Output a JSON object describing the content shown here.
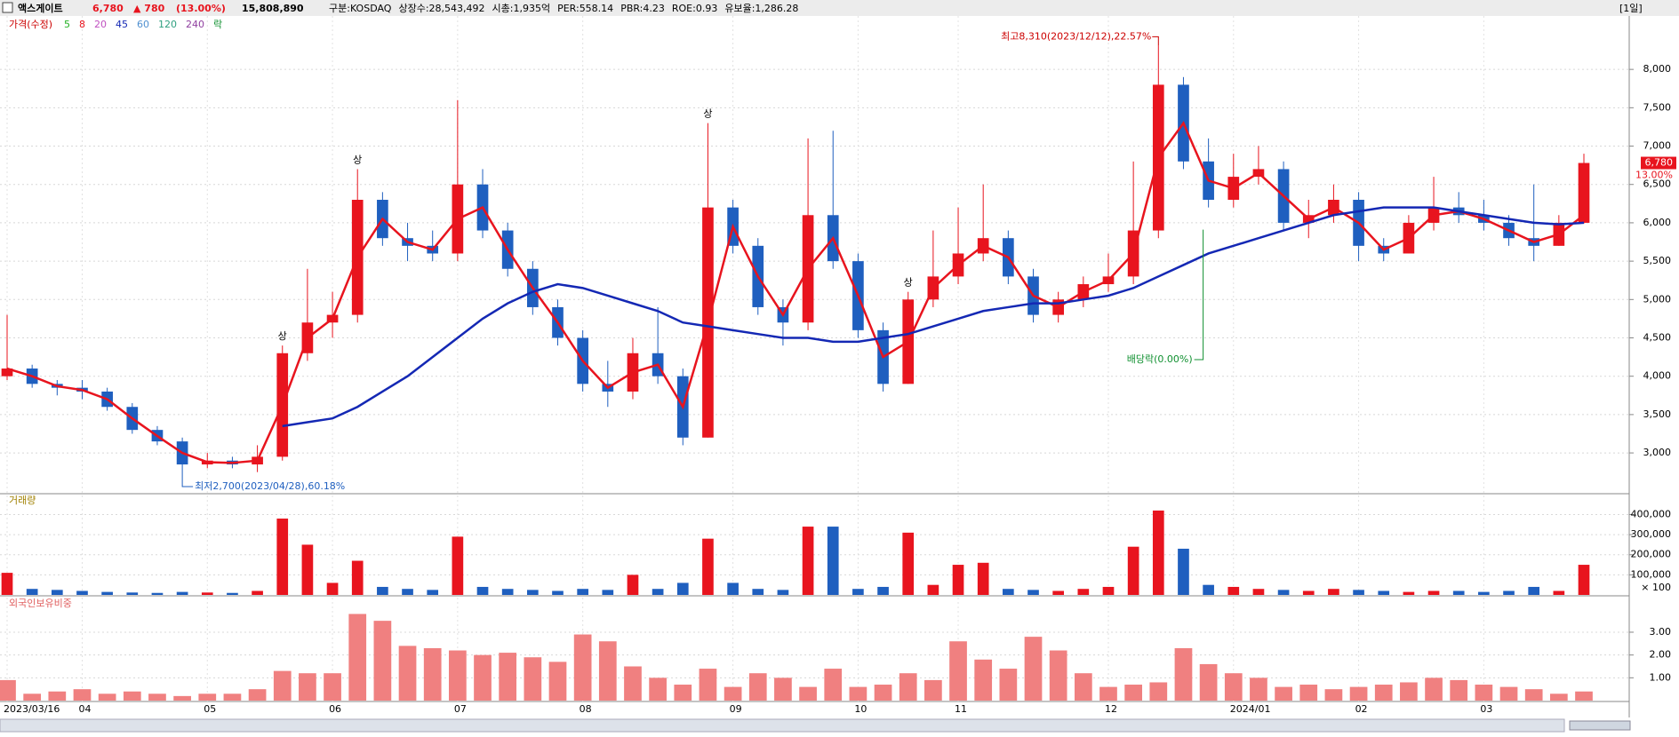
{
  "header": {
    "name": "액스게이트",
    "price": "6,780",
    "change": "▲ 780",
    "change_pct": "(13.00%)",
    "volume": "15,808,890",
    "info": [
      "구분:KOSDAQ",
      "상장수:28,543,492",
      "시총:1,935억",
      "PER:558.14",
      "PBR:4.23",
      "ROE:0.93",
      "유보율:1,286.28"
    ],
    "period": "[1일]"
  },
  "chart_data": {
    "type": "candlestick",
    "title": "가격(수정)",
    "categories": [
      "2023/03/16",
      null,
      null,
      "04",
      null,
      null,
      null,
      null,
      "05",
      null,
      null,
      null,
      null,
      "06",
      null,
      null,
      null,
      null,
      "07",
      null,
      null,
      null,
      null,
      "08",
      null,
      null,
      null,
      null,
      null,
      "09",
      null,
      null,
      null,
      null,
      "10",
      null,
      null,
      null,
      "11",
      null,
      null,
      null,
      null,
      null,
      "12",
      null,
      null,
      null,
      null,
      "2024/01",
      null,
      null,
      null,
      null,
      "02",
      null,
      null,
      null,
      null,
      "03",
      null,
      null,
      null,
      null
    ],
    "candles": [
      [
        4000,
        4800,
        3950,
        4100
      ],
      [
        4100,
        4150,
        3850,
        3900
      ],
      [
        3900,
        3950,
        3750,
        3850
      ],
      [
        3850,
        3950,
        3700,
        3800
      ],
      [
        3800,
        3850,
        3550,
        3600
      ],
      [
        3600,
        3650,
        3250,
        3300
      ],
      [
        3300,
        3350,
        3100,
        3150
      ],
      [
        3150,
        3200,
        2700,
        2850
      ],
      [
        2850,
        3000,
        2800,
        2900
      ],
      [
        2900,
        2950,
        2800,
        2850
      ],
      [
        2850,
        3100,
        2750,
        2950
      ],
      [
        2950,
        4400,
        2900,
        4300
      ],
      [
        4300,
        5400,
        4200,
        4700
      ],
      [
        4700,
        5100,
        4500,
        4800
      ],
      [
        4800,
        6700,
        4700,
        6300
      ],
      [
        6300,
        6400,
        5700,
        5800
      ],
      [
        5800,
        6000,
        5500,
        5700
      ],
      [
        5700,
        5900,
        5500,
        5600
      ],
      [
        5600,
        7600,
        5500,
        6500
      ],
      [
        6500,
        6700,
        5800,
        5900
      ],
      [
        5900,
        6000,
        5300,
        5400
      ],
      [
        5400,
        5500,
        4800,
        4900
      ],
      [
        4900,
        5000,
        4400,
        4500
      ],
      [
        4500,
        4600,
        3800,
        3900
      ],
      [
        3900,
        4200,
        3600,
        3800
      ],
      [
        3800,
        4500,
        3700,
        4300
      ],
      [
        4300,
        4900,
        3900,
        4000
      ],
      [
        4000,
        4100,
        3100,
        3200
      ],
      [
        3200,
        7300,
        3200,
        6200
      ],
      [
        6200,
        6300,
        5600,
        5700
      ],
      [
        5700,
        5800,
        4800,
        4900
      ],
      [
        4900,
        5000,
        4400,
        4700
      ],
      [
        4700,
        7100,
        4600,
        6100
      ],
      [
        6100,
        7200,
        5400,
        5500
      ],
      [
        5500,
        5600,
        4500,
        4600
      ],
      [
        4600,
        4700,
        3800,
        3900
      ],
      [
        3900,
        5100,
        3900,
        5000
      ],
      [
        5000,
        5900,
        4900,
        5300
      ],
      [
        5300,
        6200,
        5200,
        5600
      ],
      [
        5600,
        6500,
        5500,
        5800
      ],
      [
        5800,
        5900,
        5200,
        5300
      ],
      [
        5300,
        5400,
        4700,
        4800
      ],
      [
        4800,
        5100,
        4700,
        5000
      ],
      [
        5000,
        5300,
        4900,
        5200
      ],
      [
        5200,
        5600,
        5100,
        5300
      ],
      [
        5300,
        6800,
        5200,
        5900
      ],
      [
        5900,
        8310,
        5800,
        7800
      ],
      [
        7800,
        7900,
        6700,
        6800
      ],
      [
        6800,
        7100,
        6200,
        6300
      ],
      [
        6300,
        6900,
        6200,
        6600
      ],
      [
        6600,
        7000,
        6500,
        6700
      ],
      [
        6700,
        6800,
        5900,
        6000
      ],
      [
        6000,
        6300,
        5800,
        6100
      ],
      [
        6100,
        6500,
        6000,
        6300
      ],
      [
        6300,
        6400,
        5500,
        5700
      ],
      [
        5700,
        5800,
        5500,
        5600
      ],
      [
        5600,
        6100,
        5600,
        6000
      ],
      [
        6000,
        6600,
        5900,
        6200
      ],
      [
        6200,
        6400,
        6000,
        6100
      ],
      [
        6100,
        6300,
        5900,
        6000
      ],
      [
        6000,
        6100,
        5700,
        5800
      ],
      [
        5800,
        6500,
        5500,
        5700
      ],
      [
        5700,
        6100,
        5700,
        6000
      ],
      [
        6000,
        6900,
        5990,
        6780
      ]
    ],
    "up_color": "#e8141e",
    "down_color": "#1f5fbf",
    "series": [
      {
        "name": "5",
        "color": "#22b022"
      },
      {
        "name": "8",
        "color": "#e8141e",
        "values": [
          4100,
          4000,
          3870,
          3820,
          3700,
          3450,
          3220,
          3000,
          2880,
          2870,
          2900,
          3620,
          4500,
          4750,
          5550,
          6050,
          5750,
          5650,
          6050,
          6200,
          5650,
          5150,
          4700,
          4200,
          3850,
          4050,
          4150,
          3600,
          4700,
          5950,
          5300,
          4800,
          5400,
          5800,
          5050,
          4250,
          4450,
          5150,
          5450,
          5700,
          5550,
          5050,
          4900,
          5100,
          5250,
          5600,
          6850,
          7300,
          6550,
          6450,
          6650,
          6350,
          6050,
          6200,
          6000,
          5650,
          5800,
          6100,
          6150,
          6050,
          5900,
          5750,
          5850,
          6100
        ]
      },
      {
        "name": "20",
        "color": "#c050c0"
      },
      {
        "name": "45",
        "color": "#1428b4",
        "values": [
          null,
          null,
          null,
          null,
          null,
          null,
          null,
          null,
          null,
          null,
          null,
          3350,
          3400,
          3450,
          3600,
          3800,
          4000,
          4250,
          4500,
          4750,
          4950,
          5100,
          5200,
          5150,
          5050,
          4950,
          4850,
          4700,
          4650,
          4600,
          4550,
          4500,
          4500,
          4450,
          4450,
          4500,
          4550,
          4650,
          4750,
          4850,
          4900,
          4950,
          4950,
          5000,
          5050,
          5150,
          5300,
          5450,
          5600,
          5700,
          5800,
          5900,
          6000,
          6100,
          6150,
          6200,
          6200,
          6200,
          6150,
          6100,
          6050,
          6000,
          5980,
          6000
        ]
      },
      {
        "name": "60",
        "color": "#5090d0"
      },
      {
        "name": "120",
        "color": "#30a080"
      },
      {
        "name": "240",
        "color": "#9040a0"
      },
      {
        "name": "락",
        "color": "#109030"
      }
    ],
    "limit_up_label": "상",
    "limit_up": [
      11,
      14,
      28,
      36
    ],
    "ylim": [
      2480,
      8650
    ],
    "yticks": [
      {
        "value": 3000,
        "label": "3,000"
      },
      {
        "value": 3500,
        "label": "3,500"
      },
      {
        "value": 4000,
        "label": "4,000"
      },
      {
        "value": 4500,
        "label": "4,500"
      },
      {
        "value": 5000,
        "label": "5,000"
      },
      {
        "value": 5500,
        "label": "5,500"
      },
      {
        "value": 6000,
        "label": "6,000"
      },
      {
        "value": 6500,
        "label": "6,500"
      },
      {
        "value": 7000,
        "label": "7,000"
      },
      {
        "value": 7500,
        "label": "7,500"
      },
      {
        "value": 8000,
        "label": "8,000"
      }
    ],
    "last_price": {
      "value": 6780,
      "label": "6,780",
      "pct": "13.00%"
    },
    "annotations": {
      "high": "최고8,310(2023/12/12),22.57%",
      "low": "최저2,700(2023/04/28),60.18%",
      "dividend": "배당락(0.00%)"
    },
    "volume": {
      "title": "거래량",
      "values": [
        110000,
        30000,
        25000,
        20000,
        15000,
        12000,
        10000,
        15000,
        12000,
        10000,
        20000,
        380000,
        250000,
        60000,
        170000,
        40000,
        30000,
        25000,
        290000,
        40000,
        30000,
        25000,
        20000,
        30000,
        25000,
        100000,
        30000,
        60000,
        280000,
        60000,
        30000,
        25000,
        340000,
        340000,
        30000,
        40000,
        310000,
        50000,
        150000,
        160000,
        30000,
        25000,
        20000,
        30000,
        40000,
        240000,
        420000,
        230000,
        50000,
        40000,
        30000,
        25000,
        20000,
        30000,
        25000,
        20000,
        15000,
        20000,
        20000,
        15000,
        20000,
        40000,
        20000,
        150000
      ],
      "ylim": [
        0,
        495000
      ],
      "yticks": [
        {
          "value": 100000,
          "label": "100,000"
        },
        {
          "value": 200000,
          "label": "200,000"
        },
        {
          "value": 300000,
          "label": "300,000"
        },
        {
          "value": 400000,
          "label": "400,000"
        }
      ],
      "unit": "× 100"
    },
    "foreign": {
      "title": "외국인보유비중",
      "color": "#f08080",
      "values": [
        0.9,
        0.3,
        0.4,
        0.5,
        0.3,
        0.4,
        0.3,
        0.2,
        0.3,
        0.3,
        0.5,
        1.3,
        1.2,
        1.2,
        3.8,
        3.5,
        2.4,
        2.3,
        2.2,
        2.0,
        2.1,
        1.9,
        1.7,
        2.9,
        2.6,
        1.5,
        1.0,
        0.7,
        1.4,
        0.6,
        1.2,
        1.0,
        0.6,
        1.4,
        0.6,
        0.7,
        1.2,
        0.9,
        2.6,
        1.8,
        1.4,
        2.8,
        2.2,
        1.2,
        0.6,
        0.7,
        0.8,
        2.3,
        1.6,
        1.2,
        1.0,
        0.6,
        0.7,
        0.5,
        0.6,
        0.7,
        0.8,
        1.0,
        0.9,
        0.7,
        0.6,
        0.5,
        0.3,
        0.4
      ],
      "ylim": [
        0,
        4.44
      ],
      "yticks": [
        {
          "value": 1,
          "label": "1.00"
        },
        {
          "value": 2,
          "label": "2.00"
        },
        {
          "value": 3,
          "label": "3.00"
        }
      ]
    }
  }
}
